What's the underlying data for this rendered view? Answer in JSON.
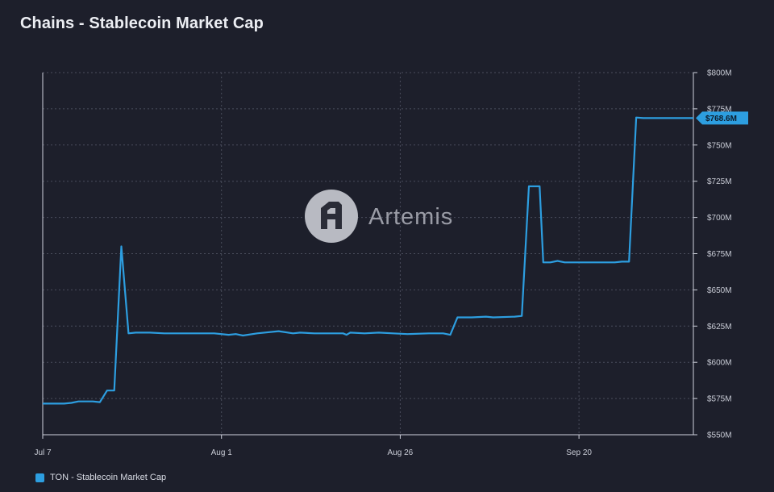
{
  "chart_data": {
    "type": "line",
    "title": "Chains - Stablecoin Market Cap",
    "x_ticks": [
      "Jul 7",
      "Aug 1",
      "Aug 26",
      "Sep 20"
    ],
    "x_tick_days": [
      0,
      25,
      50,
      75
    ],
    "x_range_days": [
      0,
      91
    ],
    "y_ticks": [
      "$550M",
      "$575M",
      "$600M",
      "$625M",
      "$650M",
      "$675M",
      "$700M",
      "$725M",
      "$750M",
      "$775M",
      "$800M"
    ],
    "ylim": [
      550,
      800
    ],
    "y_unit": "$M",
    "grid": true,
    "legend_position": "bottom-left",
    "series": [
      {
        "name": "TON - Stablecoin Market Cap",
        "color": "#2d9ee0",
        "x": [
          0,
          3,
          4,
          5,
          7,
          8,
          9,
          10,
          11,
          12,
          13,
          15,
          17,
          20,
          22,
          24,
          26,
          27,
          28,
          30,
          33,
          35,
          36,
          38,
          40,
          42,
          42.5,
          43,
          45,
          47,
          49,
          51,
          54,
          56,
          57,
          58,
          60,
          62,
          63,
          66,
          67,
          68,
          69.5,
          70,
          71,
          72,
          73,
          75,
          77,
          80,
          81,
          82,
          83,
          84,
          86,
          88,
          90,
          91
        ],
        "y": [
          571.5,
          571.5,
          572,
          573,
          573,
          572.5,
          580.5,
          580.5,
          680,
          620,
          620.5,
          620.5,
          620,
          620,
          620,
          620,
          619,
          619.5,
          618.5,
          620,
          621.5,
          620,
          620.5,
          620,
          620,
          620,
          619,
          620.5,
          620,
          620.5,
          620,
          619.5,
          620,
          620,
          619,
          631,
          631,
          631.5,
          631,
          631.5,
          632,
          721.5,
          721.5,
          669,
          669,
          670,
          669,
          669,
          669,
          669,
          669.5,
          669.5,
          769,
          768.6,
          768.6,
          768.6,
          768.6,
          768.6
        ],
        "last_value_label": "$768.6M"
      }
    ]
  },
  "watermark": {
    "text": "Artemis",
    "icon": "artemis-logo-icon"
  }
}
